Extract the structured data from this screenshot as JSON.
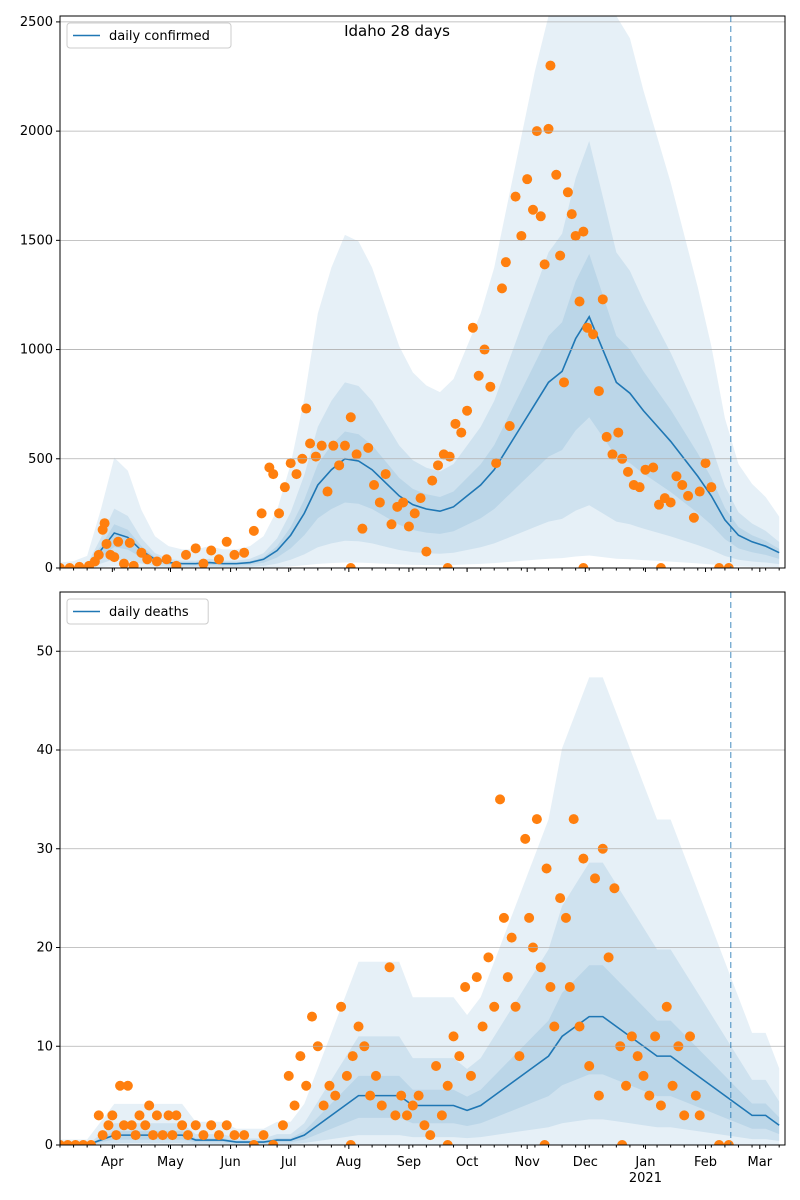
{
  "chart_data": [
    {
      "type": "line",
      "title": "Idaho 28 days",
      "legend": "daily confirmed",
      "legend_placement": "top-left",
      "ylim": [
        0,
        2527
      ],
      "yticks": [
        0,
        500,
        1000,
        1500,
        2000,
        2500
      ],
      "grid": true,
      "x_start": "2020-03-05",
      "x_days": 374,
      "forecast_start_day": 346,
      "median_step_days": 7,
      "median": [
        0,
        2,
        10,
        80,
        160,
        140,
        80,
        40,
        25,
        20,
        20,
        25,
        20,
        20,
        25,
        40,
        80,
        150,
        250,
        380,
        450,
        500,
        490,
        450,
        390,
        330,
        290,
        270,
        260,
        280,
        330,
        380,
        450,
        550,
        650,
        750,
        850,
        900,
        1050,
        1150,
        1000,
        850,
        800,
        720,
        650,
        580,
        500,
        420,
        330,
        220,
        150,
        120,
        100,
        70
      ],
      "band_factors": [
        [
          0.05,
          3.0
        ],
        [
          0.25,
          1.7
        ],
        [
          0.6,
          1.25
        ]
      ],
      "points": [
        [
          0,
          0
        ],
        [
          5,
          0
        ],
        [
          10,
          5
        ],
        [
          15,
          10
        ],
        [
          18,
          30
        ],
        [
          20,
          60
        ],
        [
          22,
          175
        ],
        [
          23,
          205
        ],
        [
          24,
          110
        ],
        [
          26,
          60
        ],
        [
          28,
          50
        ],
        [
          30,
          120
        ],
        [
          33,
          20
        ],
        [
          36,
          115
        ],
        [
          38,
          10
        ],
        [
          42,
          70
        ],
        [
          45,
          40
        ],
        [
          50,
          30
        ],
        [
          55,
          40
        ],
        [
          60,
          10
        ],
        [
          65,
          60
        ],
        [
          70,
          90
        ],
        [
          74,
          20
        ],
        [
          78,
          80
        ],
        [
          82,
          40
        ],
        [
          86,
          120
        ],
        [
          90,
          60
        ],
        [
          95,
          70
        ],
        [
          100,
          170
        ],
        [
          104,
          250
        ],
        [
          108,
          460
        ],
        [
          110,
          430
        ],
        [
          113,
          250
        ],
        [
          116,
          370
        ],
        [
          119,
          480
        ],
        [
          122,
          430
        ],
        [
          125,
          500
        ],
        [
          127,
          730
        ],
        [
          129,
          570
        ],
        [
          132,
          510
        ],
        [
          135,
          560
        ],
        [
          138,
          350
        ],
        [
          141,
          560
        ],
        [
          144,
          470
        ],
        [
          147,
          560
        ],
        [
          150,
          690
        ],
        [
          153,
          520
        ],
        [
          156,
          180
        ],
        [
          159,
          550
        ],
        [
          162,
          380
        ],
        [
          165,
          300
        ],
        [
          168,
          430
        ],
        [
          171,
          200
        ],
        [
          174,
          280
        ],
        [
          177,
          300
        ],
        [
          180,
          190
        ],
        [
          183,
          250
        ],
        [
          186,
          320
        ],
        [
          189,
          75
        ],
        [
          192,
          400
        ],
        [
          195,
          470
        ],
        [
          198,
          520
        ],
        [
          201,
          510
        ],
        [
          204,
          660
        ],
        [
          207,
          620
        ],
        [
          210,
          720
        ],
        [
          213,
          1100
        ],
        [
          216,
          880
        ],
        [
          219,
          1000
        ],
        [
          222,
          830
        ],
        [
          225,
          480
        ],
        [
          228,
          1280
        ],
        [
          230,
          1400
        ],
        [
          232,
          650
        ],
        [
          235,
          1700
        ],
        [
          238,
          1520
        ],
        [
          241,
          1780
        ],
        [
          244,
          1640
        ],
        [
          246,
          2000
        ],
        [
          248,
          1610
        ],
        [
          250,
          1390
        ],
        [
          252,
          2010
        ],
        [
          253,
          2300
        ],
        [
          256,
          1800
        ],
        [
          258,
          1430
        ],
        [
          260,
          850
        ],
        [
          262,
          1720
        ],
        [
          264,
          1620
        ],
        [
          266,
          1520
        ],
        [
          268,
          1220
        ],
        [
          270,
          1540
        ],
        [
          272,
          1100
        ],
        [
          275,
          1070
        ],
        [
          278,
          810
        ],
        [
          280,
          1230
        ],
        [
          282,
          600
        ],
        [
          285,
          520
        ],
        [
          288,
          620
        ],
        [
          290,
          500
        ],
        [
          293,
          440
        ],
        [
          296,
          380
        ],
        [
          299,
          370
        ],
        [
          302,
          450
        ],
        [
          306,
          460
        ],
        [
          309,
          290
        ],
        [
          312,
          320
        ],
        [
          315,
          300
        ],
        [
          318,
          420
        ],
        [
          321,
          380
        ],
        [
          324,
          330
        ],
        [
          327,
          230
        ],
        [
          330,
          350
        ],
        [
          333,
          480
        ],
        [
          336,
          370
        ],
        [
          150,
          0
        ],
        [
          200,
          0
        ],
        [
          270,
          0
        ],
        [
          310,
          0
        ],
        [
          340,
          0
        ],
        [
          345,
          0
        ]
      ]
    },
    {
      "type": "line",
      "legend": "daily deaths",
      "legend_placement": "top-left",
      "ylim": [
        0,
        56
      ],
      "yticks": [
        0,
        10,
        20,
        30,
        40,
        50
      ],
      "grid": true,
      "x_start": "2020-03-05",
      "x_days": 374,
      "forecast_start_day": 346,
      "median_step_days": 7,
      "median": [
        0,
        0,
        0,
        0.5,
        1,
        1,
        1,
        1,
        1,
        1,
        0.5,
        0.5,
        0.5,
        0.3,
        0.3,
        0.3,
        0.5,
        0.5,
        1,
        2,
        3,
        4,
        5,
        5,
        5,
        5,
        4,
        4,
        4,
        4,
        3.5,
        4,
        5,
        6,
        7,
        8,
        9,
        11,
        12,
        13,
        13,
        12,
        11,
        10,
        9,
        9,
        8,
        7,
        6,
        5,
        4,
        3,
        3,
        2
      ],
      "band_factors": [
        [
          0,
          3.6
        ],
        [
          0.2,
          2.2
        ],
        [
          0.55,
          1.4
        ]
      ],
      "points": [
        [
          0,
          0
        ],
        [
          4,
          0
        ],
        [
          8,
          0
        ],
        [
          12,
          0
        ],
        [
          16,
          0
        ],
        [
          20,
          3
        ],
        [
          22,
          1
        ],
        [
          25,
          2
        ],
        [
          27,
          3
        ],
        [
          29,
          1
        ],
        [
          31,
          6
        ],
        [
          33,
          2
        ],
        [
          35,
          6
        ],
        [
          37,
          2
        ],
        [
          39,
          1
        ],
        [
          41,
          3
        ],
        [
          44,
          2
        ],
        [
          46,
          4
        ],
        [
          48,
          1
        ],
        [
          50,
          3
        ],
        [
          53,
          1
        ],
        [
          56,
          3
        ],
        [
          58,
          1
        ],
        [
          60,
          3
        ],
        [
          63,
          2
        ],
        [
          66,
          1
        ],
        [
          70,
          2
        ],
        [
          74,
          1
        ],
        [
          78,
          2
        ],
        [
          82,
          1
        ],
        [
          86,
          2
        ],
        [
          90,
          1
        ],
        [
          95,
          1
        ],
        [
          100,
          0
        ],
        [
          105,
          1
        ],
        [
          110,
          0
        ],
        [
          115,
          2
        ],
        [
          118,
          7
        ],
        [
          121,
          4
        ],
        [
          124,
          9
        ],
        [
          127,
          6
        ],
        [
          130,
          13
        ],
        [
          133,
          10
        ],
        [
          136,
          4
        ],
        [
          139,
          6
        ],
        [
          142,
          5
        ],
        [
          145,
          14
        ],
        [
          148,
          7
        ],
        [
          151,
          9
        ],
        [
          154,
          12
        ],
        [
          157,
          10
        ],
        [
          160,
          5
        ],
        [
          163,
          7
        ],
        [
          166,
          4
        ],
        [
          170,
          18
        ],
        [
          173,
          3
        ],
        [
          176,
          5
        ],
        [
          179,
          3
        ],
        [
          182,
          4
        ],
        [
          185,
          5
        ],
        [
          188,
          2
        ],
        [
          191,
          1
        ],
        [
          194,
          8
        ],
        [
          197,
          3
        ],
        [
          200,
          6
        ],
        [
          203,
          11
        ],
        [
          206,
          9
        ],
        [
          209,
          16
        ],
        [
          212,
          7
        ],
        [
          215,
          17
        ],
        [
          218,
          12
        ],
        [
          221,
          19
        ],
        [
          224,
          14
        ],
        [
          227,
          35
        ],
        [
          229,
          23
        ],
        [
          231,
          17
        ],
        [
          233,
          21
        ],
        [
          235,
          14
        ],
        [
          237,
          9
        ],
        [
          240,
          31
        ],
        [
          242,
          23
        ],
        [
          244,
          20
        ],
        [
          246,
          33
        ],
        [
          248,
          18
        ],
        [
          251,
          28
        ],
        [
          253,
          16
        ],
        [
          255,
          12
        ],
        [
          258,
          25
        ],
        [
          261,
          23
        ],
        [
          263,
          16
        ],
        [
          265,
          33
        ],
        [
          268,
          12
        ],
        [
          270,
          29
        ],
        [
          273,
          8
        ],
        [
          276,
          27
        ],
        [
          278,
          5
        ],
        [
          280,
          30
        ],
        [
          283,
          19
        ],
        [
          286,
          26
        ],
        [
          289,
          10
        ],
        [
          292,
          6
        ],
        [
          295,
          11
        ],
        [
          298,
          9
        ],
        [
          301,
          7
        ],
        [
          304,
          5
        ],
        [
          307,
          11
        ],
        [
          310,
          4
        ],
        [
          313,
          14
        ],
        [
          316,
          6
        ],
        [
          319,
          10
        ],
        [
          322,
          3
        ],
        [
          325,
          11
        ],
        [
          328,
          5
        ],
        [
          330,
          3
        ],
        [
          150,
          0
        ],
        [
          200,
          0
        ],
        [
          250,
          0
        ],
        [
          290,
          0
        ],
        [
          340,
          0
        ],
        [
          345,
          0
        ]
      ]
    }
  ],
  "x_axis": {
    "months": [
      [
        "Apr",
        27
      ],
      [
        "May",
        57
      ],
      [
        "Jun",
        88
      ],
      [
        "Jul",
        118
      ],
      [
        "Aug",
        149
      ],
      [
        "Sep",
        180
      ],
      [
        "Oct",
        210
      ],
      [
        "Nov",
        241
      ],
      [
        "Dec",
        271
      ],
      [
        "Jan",
        302
      ],
      [
        "Feb",
        333
      ],
      [
        "Mar",
        361
      ]
    ],
    "year_label": "2021",
    "year_day": 302
  },
  "colors": {
    "line": "#1f77b4",
    "points": "#ff7f0e",
    "band": "#1f77b4",
    "grid": "#b0b0b0"
  }
}
